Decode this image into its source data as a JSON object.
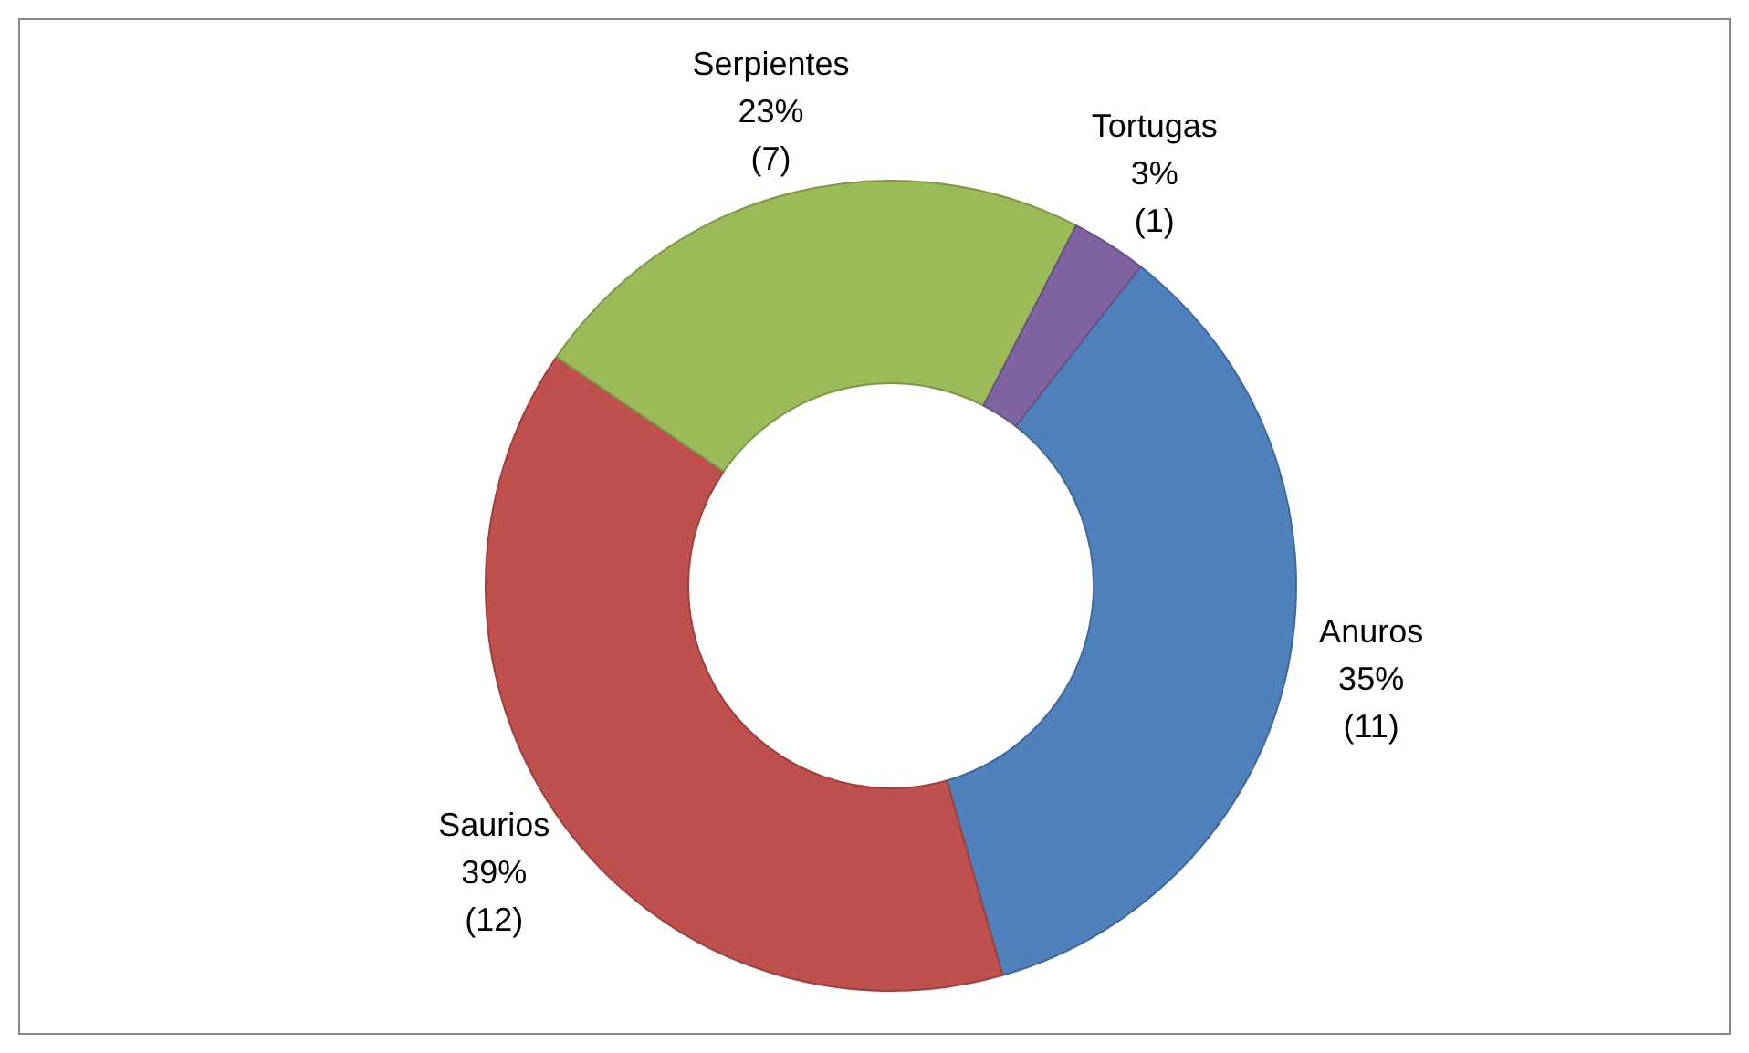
{
  "chart_data": {
    "type": "donut",
    "categories": [
      "Anuros",
      "Saurios",
      "Serpientes",
      "Tortugas"
    ],
    "values": [
      35,
      39,
      23,
      3
    ],
    "value_labels": [
      "35%\n(11)",
      "39%\n(12)",
      "23%\n(7)",
      "3%\n(1)"
    ],
    "colors": [
      "#4f81bd",
      "#c0504d",
      "#9bbb59",
      "#8064a2"
    ],
    "legend": false
  }
}
